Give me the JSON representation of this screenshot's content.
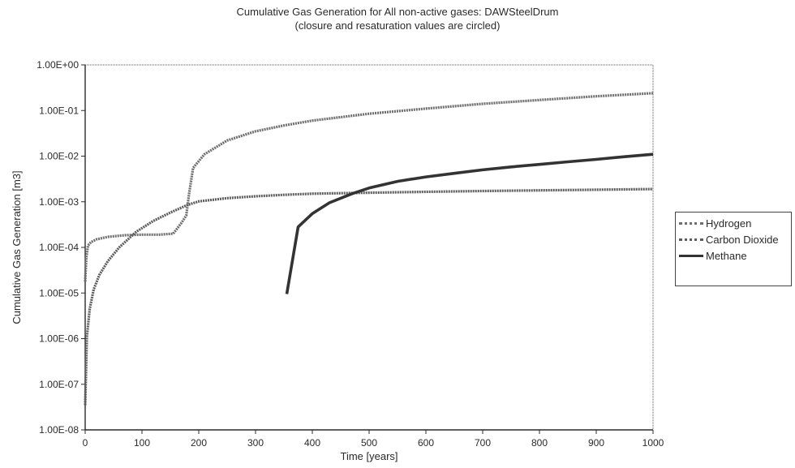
{
  "chart_data": {
    "type": "line",
    "title": "Cumulative Gas Generation for All non-active gases: DAWSteelDrum",
    "subtitle": "(closure and resaturation values are circled)",
    "xlabel": "Time [years]",
    "ylabel": "Cumulative Gas Generation [m3]",
    "xlim": [
      0,
      1000
    ],
    "ylim": [
      1e-08,
      1
    ],
    "yscale": "log",
    "xticks": [
      0,
      100,
      200,
      300,
      400,
      500,
      600,
      700,
      800,
      900,
      1000
    ],
    "xtick_labels": [
      "0",
      "100",
      "200",
      "300",
      "400",
      "500",
      "600",
      "700",
      "800",
      "900",
      "1000"
    ],
    "yticks": [
      1e-08,
      1e-07,
      1e-06,
      1e-05,
      0.0001,
      0.001,
      0.01,
      0.1,
      1
    ],
    "ytick_labels": [
      "1.00E-08",
      "1.00E-07",
      "1.00E-06",
      "1.00E-05",
      "1.00E-04",
      "1.00E-03",
      "1.00E-02",
      "1.00E-01",
      "1.00E+00"
    ],
    "grid": false,
    "legend_position": "right",
    "series": [
      {
        "name": "Hydrogen",
        "color": "#6e6e6e",
        "points": [
          [
            0,
            1.78e-05
          ],
          [
            2,
            6e-05
          ],
          [
            5,
            0.00011
          ],
          [
            10,
            0.00013
          ],
          [
            20,
            0.00015
          ],
          [
            40,
            0.00017
          ],
          [
            70,
            0.000185
          ],
          [
            100,
            0.00019
          ],
          [
            130,
            0.00019
          ],
          [
            155,
            0.0002
          ],
          [
            170,
            0.00035
          ],
          [
            178,
            0.0005
          ],
          [
            183,
            0.0015
          ],
          [
            190,
            0.0055
          ],
          [
            210,
            0.011
          ],
          [
            250,
            0.022
          ],
          [
            300,
            0.035
          ],
          [
            350,
            0.047
          ],
          [
            400,
            0.06
          ],
          [
            500,
            0.085
          ],
          [
            600,
            0.11
          ],
          [
            700,
            0.14
          ],
          [
            800,
            0.17
          ],
          [
            900,
            0.205
          ],
          [
            1000,
            0.24
          ]
        ]
      },
      {
        "name": "Carbon Dioxide",
        "color": "#5c5c5c",
        "points": [
          [
            0,
            3.5e-08
          ],
          [
            3,
            1.1e-06
          ],
          [
            8,
            4.5e-06
          ],
          [
            15,
            1.2e-05
          ],
          [
            25,
            2.5e-05
          ],
          [
            40,
            5e-05
          ],
          [
            60,
            0.0001
          ],
          [
            90,
            0.00022
          ],
          [
            120,
            0.00038
          ],
          [
            150,
            0.00058
          ],
          [
            180,
            0.00085
          ],
          [
            200,
            0.00102
          ],
          [
            250,
            0.0012
          ],
          [
            300,
            0.00132
          ],
          [
            350,
            0.00142
          ],
          [
            400,
            0.0015
          ],
          [
            500,
            0.00158
          ],
          [
            600,
            0.00165
          ],
          [
            700,
            0.00172
          ],
          [
            800,
            0.00178
          ],
          [
            900,
            0.00184
          ],
          [
            1000,
            0.0019
          ]
        ]
      },
      {
        "name": "Methane",
        "color": "#333333",
        "points": [
          [
            355,
            9.5e-06
          ],
          [
            375,
            0.00028
          ],
          [
            400,
            0.00055
          ],
          [
            430,
            0.00095
          ],
          [
            470,
            0.0015
          ],
          [
            500,
            0.002
          ],
          [
            550,
            0.0028
          ],
          [
            600,
            0.0035
          ],
          [
            650,
            0.0042
          ],
          [
            700,
            0.005
          ],
          [
            750,
            0.0058
          ],
          [
            800,
            0.0066
          ],
          [
            850,
            0.0075
          ],
          [
            900,
            0.0085
          ],
          [
            950,
            0.0097
          ],
          [
            1000,
            0.011
          ]
        ]
      }
    ]
  }
}
